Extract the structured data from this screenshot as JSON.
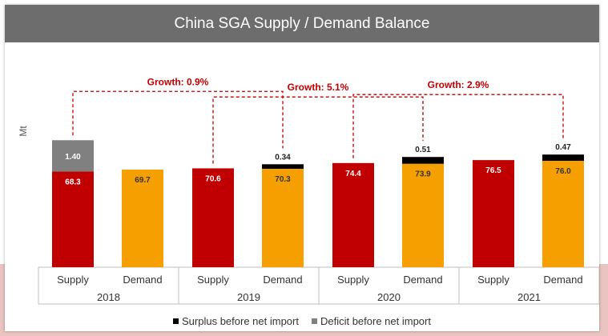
{
  "chart_data": {
    "type": "bar",
    "title": "China SGA Supply / Demand Balance",
    "ylabel": "Mt",
    "years": [
      "2018",
      "2019",
      "2020",
      "2021"
    ],
    "bar_labels": [
      "Supply",
      "Demand"
    ],
    "groups": [
      {
        "year": "2018",
        "supply": 68.3,
        "deficit": 1.4,
        "demand": 69.7,
        "surplus": null
      },
      {
        "year": "2019",
        "supply": 70.6,
        "deficit": null,
        "demand": 70.3,
        "surplus": 0.34
      },
      {
        "year": "2020",
        "supply": 74.4,
        "deficit": null,
        "demand": 73.9,
        "surplus": 0.51
      },
      {
        "year": "2021",
        "supply": 76.5,
        "deficit": null,
        "demand": 76.0,
        "surplus": 0.47
      }
    ],
    "value_labels": {
      "2018": {
        "supply": "68.3",
        "deficit": "1.40",
        "demand": "69.7"
      },
      "2019": {
        "supply": "70.6",
        "demand": "70.3",
        "surplus": "0.34"
      },
      "2020": {
        "supply": "74.4",
        "demand": "73.9",
        "surplus": "0.51"
      },
      "2021": {
        "supply": "76.5",
        "demand": "76.0",
        "surplus": "0.47"
      }
    },
    "growth_annotations": [
      {
        "from": "2018",
        "to": "2019",
        "label": "Growth: 0.9%"
      },
      {
        "from": "2019",
        "to": "2020",
        "label": "Growth: 5.1%"
      },
      {
        "from": "2020",
        "to": "2021",
        "label": "Growth: 2.9%"
      }
    ],
    "legend": [
      {
        "label": "Surplus before net import",
        "color": "#000000"
      },
      {
        "label": "Deficit before net import",
        "color": "#808080"
      }
    ],
    "colors": {
      "supply": "#c00000",
      "demand": "#f5a000",
      "surplus": "#000000",
      "deficit": "#808080",
      "annotation": "#c00000"
    },
    "legend_position": "bottom",
    "grid": false
  }
}
